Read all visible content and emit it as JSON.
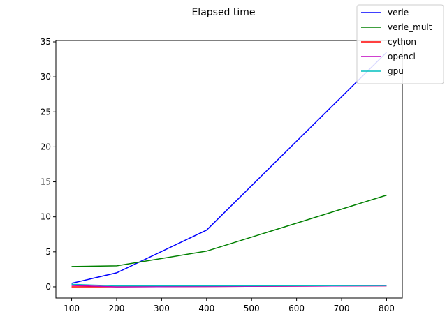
{
  "chart_data": {
    "type": "line",
    "title": "Elapsed time",
    "xlabel": "",
    "ylabel": "",
    "x": [
      100,
      200,
      400,
      800
    ],
    "xlim": [
      65,
      835
    ],
    "ylim": [
      -1.6,
      35.2
    ],
    "xticks": [
      "100",
      "200",
      "300",
      "400",
      "500",
      "600",
      "700",
      "800"
    ],
    "yticks": [
      "0",
      "5",
      "10",
      "15",
      "20",
      "25",
      "30",
      "35"
    ],
    "grid": false,
    "legend_position": "top-right",
    "series": [
      {
        "name": "verle",
        "color": "#0000ff",
        "values": [
          0.5,
          2.0,
          8.1,
          33.5
        ]
      },
      {
        "name": "verle_mult",
        "color": "#008000",
        "values": [
          2.9,
          3.0,
          5.1,
          13.1
        ]
      },
      {
        "name": "cython",
        "color": "#ff0000",
        "values": [
          0.0,
          0.0,
          0.05,
          0.15
        ]
      },
      {
        "name": "opencl",
        "color": "#bf00bf",
        "values": [
          0.2,
          0.0,
          0.05,
          0.15
        ]
      },
      {
        "name": "gpu",
        "color": "#00bfbf",
        "values": [
          0.35,
          0.15,
          0.15,
          0.2
        ]
      }
    ]
  }
}
